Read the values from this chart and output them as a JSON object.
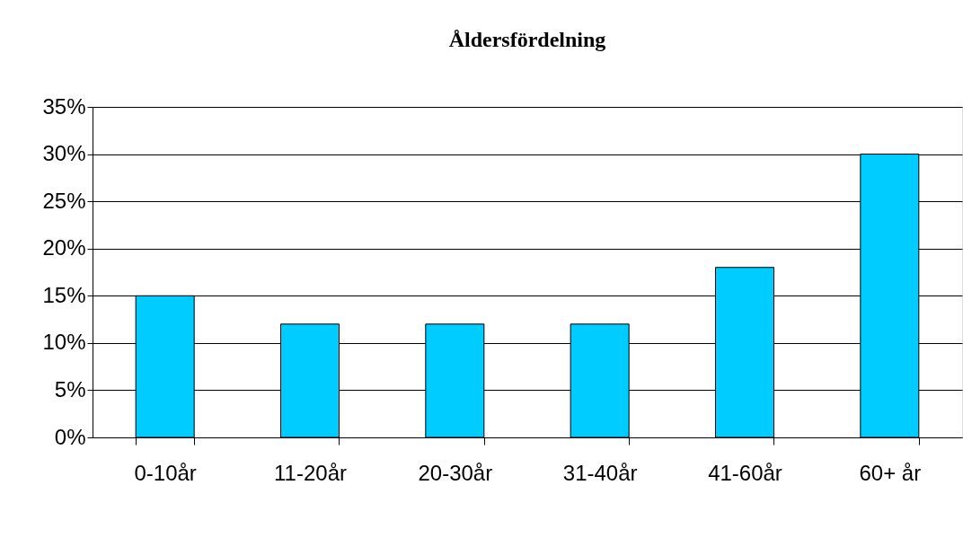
{
  "chart_data": {
    "type": "bar",
    "title": "Åldersfördelning",
    "categories": [
      "0-10år",
      "11-20år",
      "20-30år",
      "31-40år",
      "41-60år",
      "60+ år"
    ],
    "values": [
      15,
      12,
      12,
      12,
      18,
      30
    ],
    "color": "#00ccff",
    "ylim": [
      0,
      35
    ],
    "yticks": [
      {
        "value": 0,
        "label": "0%"
      },
      {
        "value": 5,
        "label": "5%"
      },
      {
        "value": 10,
        "label": "10%"
      },
      {
        "value": 15,
        "label": "15%"
      },
      {
        "value": 20,
        "label": "20%"
      },
      {
        "value": 25,
        "label": "25%"
      },
      {
        "value": 30,
        "label": "30%"
      },
      {
        "value": 35,
        "label": "35%"
      }
    ],
    "grid": "y"
  }
}
